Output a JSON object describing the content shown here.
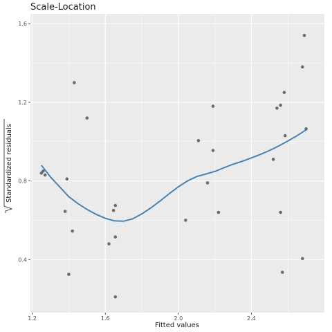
{
  "chart_data": {
    "type": "scatter",
    "title": "Scale-Location",
    "xlabel": "Fitted values",
    "ylabel": "Standardized residuals",
    "xlim": [
      1.19,
      2.8
    ],
    "ylim": [
      0.13,
      1.65
    ],
    "x_ticks": [
      1.2,
      1.6,
      2.0,
      2.4
    ],
    "x_tick_labels": [
      "1.2",
      "1.6",
      "2.0",
      "2.4"
    ],
    "y_ticks": [
      0.4,
      0.8,
      1.2,
      1.6
    ],
    "y_tick_labels": [
      "0.4",
      "0.8",
      "1.2",
      "1.6"
    ],
    "grid": true,
    "points": [
      {
        "x": 1.25,
        "y": 0.84
      },
      {
        "x": 1.26,
        "y": 0.85
      },
      {
        "x": 1.27,
        "y": 0.83
      },
      {
        "x": 1.38,
        "y": 0.645
      },
      {
        "x": 1.39,
        "y": 0.81
      },
      {
        "x": 1.4,
        "y": 0.325
      },
      {
        "x": 1.42,
        "y": 0.545
      },
      {
        "x": 1.43,
        "y": 1.3
      },
      {
        "x": 1.5,
        "y": 1.12
      },
      {
        "x": 1.62,
        "y": 0.48
      },
      {
        "x": 1.645,
        "y": 0.65
      },
      {
        "x": 1.655,
        "y": 0.675
      },
      {
        "x": 1.655,
        "y": 0.515
      },
      {
        "x": 1.655,
        "y": 0.21
      },
      {
        "x": 2.04,
        "y": 0.6
      },
      {
        "x": 2.11,
        "y": 1.005
      },
      {
        "x": 2.16,
        "y": 0.79
      },
      {
        "x": 2.19,
        "y": 1.18
      },
      {
        "x": 2.19,
        "y": 0.955
      },
      {
        "x": 2.22,
        "y": 0.64
      },
      {
        "x": 2.52,
        "y": 0.91
      },
      {
        "x": 2.54,
        "y": 1.17
      },
      {
        "x": 2.56,
        "y": 1.185
      },
      {
        "x": 2.56,
        "y": 0.64
      },
      {
        "x": 2.57,
        "y": 0.335
      },
      {
        "x": 2.58,
        "y": 1.25
      },
      {
        "x": 2.585,
        "y": 1.03
      },
      {
        "x": 2.68,
        "y": 1.38
      },
      {
        "x": 2.68,
        "y": 0.405
      },
      {
        "x": 2.69,
        "y": 1.54
      },
      {
        "x": 2.7,
        "y": 1.065
      }
    ],
    "smooth_line": {
      "x": [
        1.25,
        1.3,
        1.35,
        1.4,
        1.45,
        1.5,
        1.55,
        1.6,
        1.65,
        1.7,
        1.75,
        1.8,
        1.85,
        1.9,
        1.95,
        2.0,
        2.05,
        2.1,
        2.15,
        2.2,
        2.25,
        2.3,
        2.35,
        2.4,
        2.45,
        2.5,
        2.55,
        2.6,
        2.65,
        2.7
      ],
      "y": [
        0.88,
        0.82,
        0.77,
        0.72,
        0.685,
        0.655,
        0.63,
        0.61,
        0.597,
        0.595,
        0.607,
        0.632,
        0.663,
        0.698,
        0.735,
        0.77,
        0.8,
        0.822,
        0.835,
        0.848,
        0.867,
        0.885,
        0.9,
        0.917,
        0.935,
        0.955,
        0.978,
        1.003,
        1.03,
        1.06
      ]
    },
    "point_color": "#555555",
    "line_color": "#4682b4",
    "panel_color": "#ebebeb"
  }
}
